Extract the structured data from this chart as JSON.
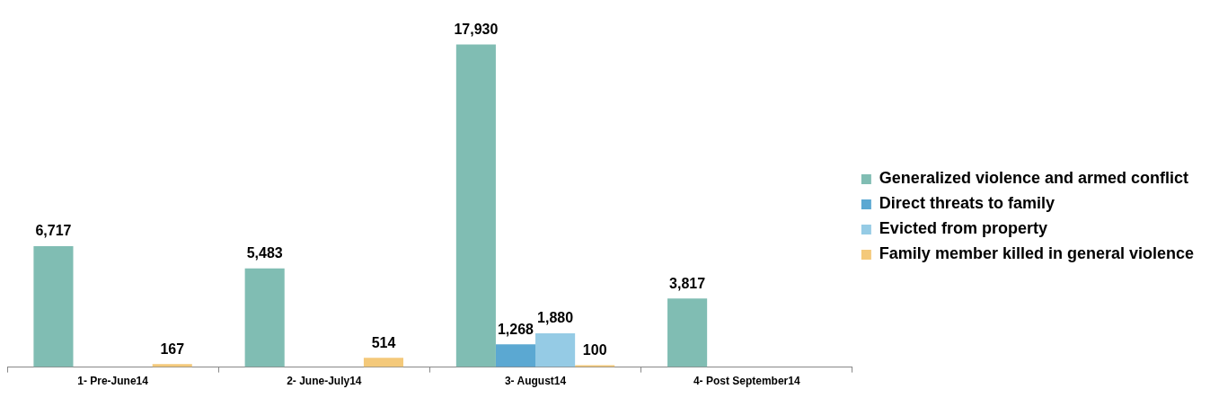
{
  "chart_data": {
    "type": "bar",
    "categories": [
      "1- Pre-June14",
      "2- June-July14",
      "3- August14",
      "4- Post September14"
    ],
    "series": [
      {
        "name": "Generalized violence and armed conflict",
        "color": "#80bdb3",
        "values": [
          6717,
          5483,
          17930,
          3817
        ],
        "value_labels": [
          "6,717",
          "5,483",
          "17,930",
          "3,817"
        ]
      },
      {
        "name": "Direct threats to family",
        "color": "#5ba8d2",
        "values": [
          null,
          null,
          1268,
          null
        ],
        "value_labels": [
          null,
          null,
          "1,268",
          null
        ]
      },
      {
        "name": "Evicted from property",
        "color": "#95cbe5",
        "values": [
          null,
          null,
          1880,
          null
        ],
        "value_labels": [
          null,
          null,
          "1,880",
          null
        ]
      },
      {
        "name": "Family member killed in general violence",
        "color": "#f4c97a",
        "values": [
          167,
          514,
          100,
          null
        ],
        "value_labels": [
          "167",
          "514",
          "100",
          null
        ]
      }
    ],
    "legend": "right",
    "grid": false
  }
}
